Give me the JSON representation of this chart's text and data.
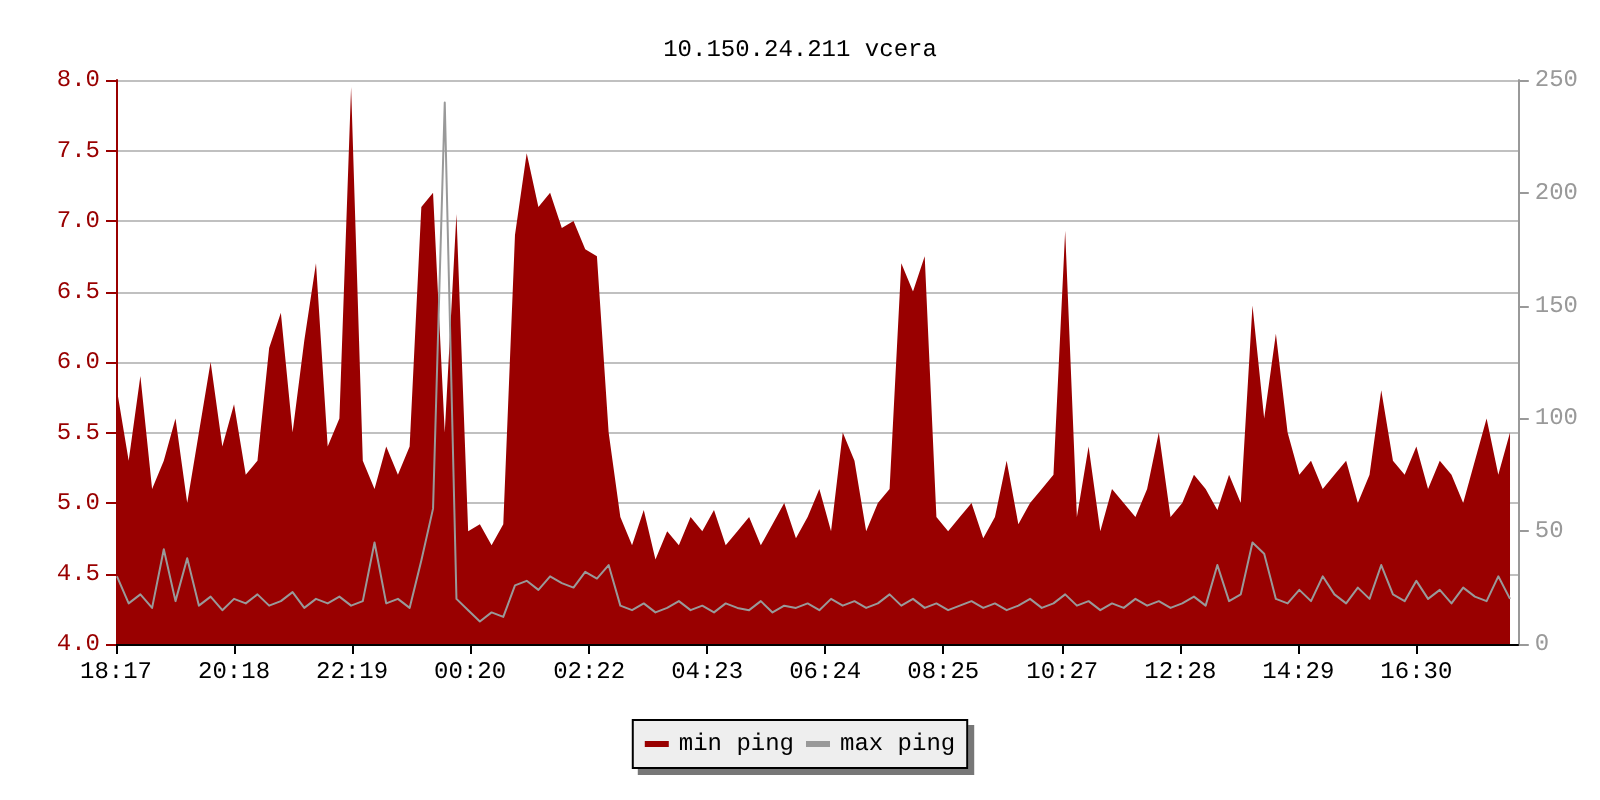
{
  "chart_data": {
    "type": "area",
    "title": "10.150.24.211 vcera",
    "x": [
      "--01-01T18:18",
      "--01-01T18:30",
      "--01-01T18:42",
      "--01-01T18:54",
      "--01-01T19:06",
      "--01-01T19:18",
      "--01-01T19:30",
      "--01-01T19:42",
      "--01-01T19:54",
      "--01-01T20:06",
      "--01-01T20:18",
      "--01-01T20:30",
      "--01-01T20:42",
      "--01-01T20:54",
      "--01-01T21:06",
      "--01-01T21:18",
      "--01-01T21:30",
      "--01-01T21:42",
      "--01-01T21:54",
      "--01-01T22:06",
      "--01-01T22:18",
      "--01-01T22:30",
      "--01-01T22:42",
      "--01-01T22:54",
      "--01-01T23:06",
      "--01-01T23:18",
      "--01-01T23:30",
      "--01-01T23:42",
      "--01-01T23:54",
      "--01-02T00:06",
      "--01-02T00:18",
      "--01-02T00:30",
      "--01-02T00:42",
      "--01-02T00:54",
      "--01-02T01:06",
      "--01-02T01:18",
      "--01-02T01:30",
      "--01-02T01:42",
      "--01-02T01:54",
      "--01-02T02:06",
      "--01-02T02:18",
      "--01-02T02:30",
      "--01-02T02:42",
      "--01-02T02:54",
      "--01-02T03:06",
      "--01-02T03:18",
      "--01-02T03:30",
      "--01-02T03:42",
      "--01-02T03:54",
      "--01-02T04:06",
      "--01-02T04:18",
      "--01-02T04:30",
      "--01-02T04:42",
      "--01-02T04:54",
      "--01-02T05:06",
      "--01-02T05:18",
      "--01-02T05:30",
      "--01-02T05:42",
      "--01-02T05:54",
      "--01-02T06:06",
      "--01-02T06:18",
      "--01-02T06:30",
      "--01-02T06:42",
      "--01-02T06:54",
      "--01-02T07:06",
      "--01-02T07:18",
      "--01-02T07:30",
      "--01-02T07:42",
      "--01-02T07:54",
      "--01-02T08:06",
      "--01-02T08:18",
      "--01-02T08:30",
      "--01-02T08:42",
      "--01-02T08:54",
      "--01-02T09:06",
      "--01-02T09:18",
      "--01-02T09:30",
      "--01-02T09:42",
      "--01-02T09:54",
      "--01-02T10:06",
      "--01-02T10:18",
      "--01-02T10:30",
      "--01-02T10:42",
      "--01-02T10:54",
      "--01-02T11:06",
      "--01-02T11:18",
      "--01-02T11:30",
      "--01-02T11:42",
      "--01-02T11:54",
      "--01-02T12:06",
      "--01-02T12:18",
      "--01-02T12:30",
      "--01-02T12:42",
      "--01-02T12:54",
      "--01-02T13:06",
      "--01-02T13:18",
      "--01-02T13:30",
      "--01-02T13:42",
      "--01-02T13:54",
      "--01-02T14:06",
      "--01-02T14:18",
      "--01-02T14:30",
      "--01-02T14:42",
      "--01-02T14:54",
      "--01-02T15:06",
      "--01-02T15:18",
      "--01-02T15:30",
      "--01-02T15:42",
      "--01-02T15:54",
      "--01-02T16:06",
      "--01-02T16:18",
      "--01-02T16:30",
      "--01-02T16:42",
      "--01-02T16:54",
      "--01-02T17:06",
      "--01-02T17:18",
      "--01-02T17:30",
      "--01-02T17:42",
      "--01-02T17:54",
      "--01-02T18:06"
    ],
    "series": [
      {
        "name": "min ping",
        "color": "#990000",
        "values": [
          5.8,
          5.3,
          5.9,
          5.1,
          5.3,
          5.6,
          5.0,
          5.5,
          6.0,
          5.4,
          5.7,
          5.2,
          5.3,
          6.1,
          6.35,
          5.5,
          6.15,
          6.7,
          5.4,
          5.6,
          7.95,
          5.3,
          5.1,
          5.4,
          5.2,
          5.4,
          7.1,
          7.2,
          5.5,
          7.05,
          4.8,
          4.85,
          4.7,
          4.85,
          6.9,
          7.48,
          7.1,
          7.2,
          6.95,
          7.0,
          6.8,
          6.75,
          5.5,
          4.9,
          4.7,
          4.95,
          4.6,
          4.8,
          4.7,
          4.9,
          4.8,
          4.95,
          4.7,
          4.8,
          4.9,
          4.7,
          4.85,
          5.0,
          4.75,
          4.9,
          5.1,
          4.8,
          5.5,
          5.3,
          4.8,
          5.0,
          5.1,
          6.7,
          6.5,
          6.75,
          4.9,
          4.8,
          4.9,
          5.0,
          4.75,
          4.9,
          5.3,
          4.85,
          5.0,
          5.1,
          5.2,
          6.93,
          4.9,
          5.4,
          4.8,
          5.1,
          5.0,
          4.9,
          5.1,
          5.5,
          4.9,
          5.0,
          5.2,
          5.1,
          4.95,
          5.2,
          5.0,
          6.4,
          5.6,
          6.2,
          5.5,
          5.2,
          5.3,
          5.1,
          5.2,
          5.3,
          5.0,
          5.2,
          5.8,
          5.3,
          5.2,
          5.4,
          5.1,
          5.3,
          5.2,
          5.0,
          5.3,
          5.6,
          5.2,
          5.5
        ]
      },
      {
        "name": "max ping",
        "type": "line",
        "axis": "y2",
        "color": "#999999",
        "values": [
          30,
          18,
          22,
          16,
          42,
          19,
          38,
          17,
          21,
          15,
          20,
          18,
          22,
          17,
          19,
          23,
          16,
          20,
          18,
          21,
          17,
          19,
          45,
          18,
          20,
          16,
          37,
          60,
          240,
          20,
          15,
          10,
          14,
          12,
          26,
          28,
          24,
          30,
          27,
          25,
          32,
          29,
          35,
          17,
          15,
          18,
          14,
          16,
          19,
          15,
          17,
          14,
          18,
          16,
          15,
          19,
          14,
          17,
          16,
          18,
          15,
          20,
          17,
          19,
          16,
          18,
          22,
          17,
          20,
          16,
          18,
          15,
          17,
          19,
          16,
          18,
          15,
          17,
          20,
          16,
          18,
          22,
          17,
          19,
          15,
          18,
          16,
          20,
          17,
          19,
          16,
          18,
          21,
          17,
          35,
          19,
          22,
          45,
          40,
          20,
          18,
          24,
          19,
          30,
          22,
          18,
          25,
          20,
          35,
          22,
          19,
          28,
          20,
          24,
          18,
          25,
          21,
          19,
          30,
          20
        ]
      }
    ],
    "xlim": [
      "--01-01T18:17",
      "--01-02T18:15"
    ],
    "xticks": [
      {
        "value": "--01-01T18:17",
        "label": "18:17"
      },
      {
        "value": "--01-01T20:18",
        "label": "20:18"
      },
      {
        "value": "--01-01T22:19",
        "label": "22:19"
      },
      {
        "value": "--01-02T00:20",
        "label": "00:20"
      },
      {
        "value": "--01-02T02:22",
        "label": "02:22"
      },
      {
        "value": "--01-02T04:23",
        "label": "04:23"
      },
      {
        "value": "--01-02T06:24",
        "label": "06:24"
      },
      {
        "value": "--01-02T08:25",
        "label": "08:25"
      },
      {
        "value": "--01-02T10:27",
        "label": "10:27"
      },
      {
        "value": "--01-02T12:28",
        "label": "12:28"
      },
      {
        "value": "--01-02T14:29",
        "label": "14:29"
      },
      {
        "value": "--01-02T16:30",
        "label": "16:30"
      }
    ],
    "ylim": [
      4,
      8
    ],
    "yticks": [
      {
        "value": 4,
        "label": "4.0"
      },
      {
        "value": 4.5,
        "label": "4.5"
      },
      {
        "value": 5,
        "label": "5.0"
      },
      {
        "value": 5.5,
        "label": "5.5"
      },
      {
        "value": 6,
        "label": "6.0"
      },
      {
        "value": 6.5,
        "label": "6.5"
      },
      {
        "value": 7,
        "label": "7.0"
      },
      {
        "value": 7.5,
        "label": "7.5"
      },
      {
        "value": 8,
        "label": "8.0"
      }
    ],
    "y2lim": [
      0,
      250
    ],
    "y2ticks": [
      0,
      50,
      100,
      150,
      200,
      250
    ],
    "grid": "y",
    "legend": "bottom",
    "marker": "none",
    "line_style": "solid"
  }
}
